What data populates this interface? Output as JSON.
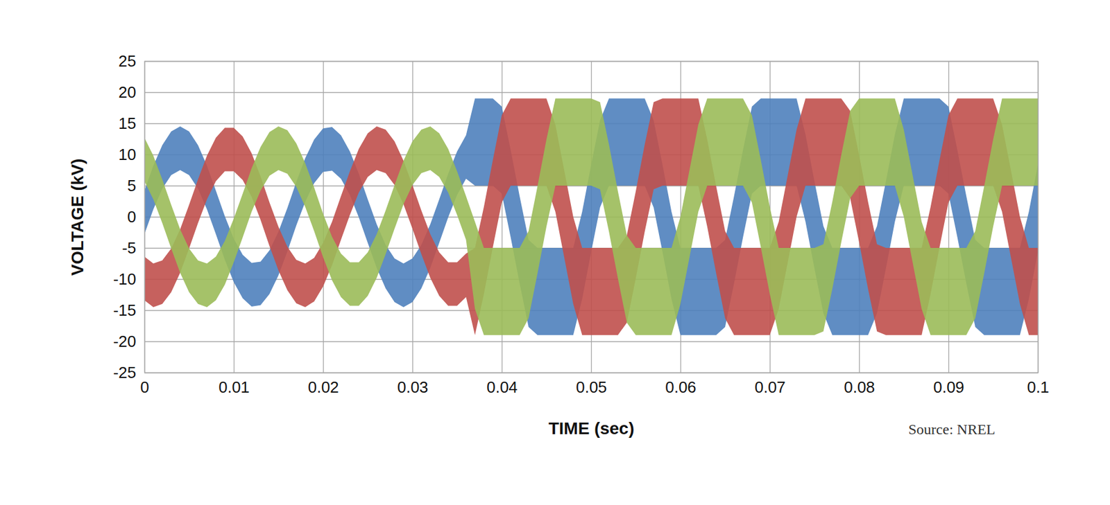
{
  "chart_data": {
    "type": "area",
    "x_label": "TIME (sec)",
    "y_label": "VOLTAGE (kV)",
    "annotation": "Source: NREL",
    "xlim": [
      0,
      0.1
    ],
    "xticks": [
      0,
      0.01,
      0.02,
      0.03,
      0.04,
      0.05,
      0.06,
      0.07,
      0.08,
      0.09,
      0.1
    ],
    "ylim": [
      -25,
      25
    ],
    "yticks": [
      -25,
      -20,
      -15,
      -10,
      -5,
      0,
      5,
      10,
      15,
      20,
      25
    ],
    "grid": true,
    "x": [
      0,
      0.001,
      0.002,
      0.003,
      0.004,
      0.005,
      0.006,
      0.007,
      0.008,
      0.009,
      0.01,
      0.011,
      0.012,
      0.013,
      0.014,
      0.015,
      0.016,
      0.017,
      0.018,
      0.019,
      0.02,
      0.021,
      0.022,
      0.023,
      0.024,
      0.025,
      0.026,
      0.027,
      0.028,
      0.029,
      0.03,
      0.031,
      0.032,
      0.033,
      0.034,
      0.035,
      0.036,
      0.037,
      0.038,
      0.039,
      0.04,
      0.041,
      0.042,
      0.043,
      0.044,
      0.045,
      0.046,
      0.047,
      0.048,
      0.049,
      0.05,
      0.051,
      0.052,
      0.053,
      0.054,
      0.055,
      0.056,
      0.057,
      0.058,
      0.059,
      0.06,
      0.061,
      0.062,
      0.063,
      0.064,
      0.065,
      0.066,
      0.067,
      0.068,
      0.069,
      0.07,
      0.071,
      0.072,
      0.073,
      0.074,
      0.075,
      0.076,
      0.077,
      0.078,
      0.079,
      0.08,
      0.081,
      0.082,
      0.083,
      0.084,
      0.085,
      0.086,
      0.087,
      0.088,
      0.089,
      0.09,
      0.091,
      0.092,
      0.093,
      0.094,
      0.095,
      0.096,
      0.097,
      0.098,
      0.099,
      0.1
    ],
    "series": [
      {
        "color": "#4f81bd",
        "upper": [
          4.2,
          8.2,
          11.5,
          13.7,
          14.5,
          13.7,
          11.5,
          8.2,
          4.2,
          0.1,
          -3.5,
          -6.1,
          -7.4,
          -7.2,
          -5.4,
          -2.4,
          1.4,
          5.6,
          9.4,
          12.4,
          14.2,
          14.4,
          13.1,
          10.5,
          6.9,
          2.8,
          -1.2,
          -4.5,
          -6.7,
          -7.5,
          -6.7,
          -4.5,
          -1.2,
          2.8,
          6.9,
          10.5,
          13.1,
          19,
          19,
          19,
          17.7,
          10.7,
          3.3,
          -3.7,
          -5,
          -5,
          -5,
          -5,
          -5,
          0.8,
          8.3,
          15.5,
          19,
          19,
          19,
          19,
          19,
          15.5,
          8.3,
          0.8,
          -5,
          -5,
          -5,
          -5,
          -5,
          -3.7,
          3.3,
          10.7,
          17.7,
          19,
          19,
          19,
          19,
          19,
          13.2,
          5.7,
          -1.5,
          -5,
          -5,
          -5,
          -5,
          -5,
          -1.5,
          5.7,
          13.2,
          19,
          19,
          19,
          19,
          19,
          17.7,
          10.7,
          3.3,
          -3.7,
          -5,
          -5,
          -5,
          -5,
          -5,
          0.8,
          8.3
        ],
        "lower": [
          -2.8,
          1.2,
          4.5,
          6.7,
          7.5,
          6.7,
          4.5,
          1.2,
          -2.8,
          -6.9,
          -10.5,
          -13.1,
          -14.4,
          -14.2,
          -12.4,
          -9.4,
          -5.6,
          -1.4,
          2.4,
          5.4,
          7.2,
          7.4,
          6.1,
          3.5,
          -0.1,
          -4.2,
          -8.2,
          -11.5,
          -13.7,
          -14.5,
          -13.7,
          -11.5,
          -8.2,
          -4.2,
          -0.1,
          3.5,
          6.1,
          5,
          5,
          5,
          3.7,
          -3.3,
          -10.7,
          -17.7,
          -19,
          -19,
          -19,
          -19,
          -19,
          -13.2,
          -5.7,
          1.5,
          5,
          5,
          5,
          5,
          5,
          1.5,
          -5.7,
          -13.2,
          -19,
          -19,
          -19,
          -19,
          -19,
          -17.7,
          -10.7,
          -3.3,
          3.7,
          5,
          5,
          5,
          5,
          5,
          -0.8,
          -8.3,
          -15.5,
          -19,
          -19,
          -19,
          -19,
          -19,
          -15.5,
          -8.3,
          -0.8,
          5,
          5,
          5,
          5,
          5,
          3.7,
          -3.3,
          -10.7,
          -17.7,
          -19,
          -19,
          -19,
          -19,
          -19,
          -13.2,
          -5.7
        ]
      },
      {
        "color": "#c0504d",
        "upper": [
          -6.4,
          -7.5,
          -7.0,
          -5.1,
          -2.0,
          1.9,
          6.0,
          9.8,
          12.7,
          14.3,
          14.3,
          12.9,
          10.2,
          6.5,
          2.3,
          -1.6,
          -4.8,
          -6.9,
          -7.5,
          -6.6,
          -4.2,
          -0.8,
          3.3,
          7.3,
          10.9,
          13.4,
          14.5,
          14.0,
          12.1,
          9.0,
          5.1,
          1.0,
          -2.8,
          -5.7,
          -7.3,
          -7.3,
          -5.9,
          -5,
          1.6,
          9.1,
          16.3,
          19,
          19,
          19,
          19,
          19,
          14.8,
          7.4,
          0,
          -5,
          -5,
          -5,
          -5,
          -5,
          -3,
          4.1,
          11.6,
          18.4,
          19,
          19,
          19,
          19,
          19,
          12.4,
          4.9,
          -2.3,
          -5,
          -5,
          -5,
          -5,
          -5,
          -0.8,
          6.6,
          14,
          19,
          19,
          19,
          19,
          19,
          17,
          9.9,
          2.4,
          -4.4,
          -5,
          -5,
          -5,
          -5,
          -5,
          1.6,
          9.1,
          16.3,
          19,
          19,
          19,
          19,
          19,
          14.8,
          7.4,
          0,
          -5,
          -5
        ],
        "lower": [
          -13.4,
          -14.5,
          -14.0,
          -12.1,
          -9.0,
          -5.1,
          -1.0,
          2.8,
          5.7,
          7.3,
          7.3,
          5.9,
          3.2,
          -0.5,
          -4.7,
          -8.6,
          -11.8,
          -13.9,
          -14.5,
          -13.6,
          -11.2,
          -7.8,
          -3.7,
          0.3,
          3.9,
          6.4,
          7.5,
          7.0,
          5.1,
          2.0,
          -1.9,
          -6.0,
          -9.8,
          -12.7,
          -14.3,
          -14.3,
          -12.9,
          -19,
          -12.4,
          -4.9,
          2.3,
          5,
          5,
          5,
          5,
          5,
          0.8,
          -6.6,
          -14,
          -19,
          -19,
          -19,
          -19,
          -19,
          -17,
          -9.9,
          -2.4,
          4.4,
          5,
          5,
          5,
          5,
          5,
          -1.6,
          -9.1,
          -16.3,
          -19,
          -19,
          -19,
          -19,
          -19,
          -14.8,
          -7.4,
          0,
          5,
          5,
          5,
          5,
          5,
          3,
          -4.1,
          -11.6,
          -18.4,
          -19,
          -19,
          -19,
          -19,
          -19,
          -12.4,
          -4.9,
          2.3,
          5,
          5,
          5,
          5,
          5,
          0.8,
          -6.6,
          -14,
          -19,
          -19
        ]
      },
      {
        "color": "#9bbb59",
        "upper": [
          12.7,
          9.8,
          6.0,
          1.9,
          -2.0,
          -5.1,
          -7.0,
          -7.5,
          -6.4,
          -3.9,
          -0.3,
          3.7,
          7.8,
          11.2,
          13.6,
          14.5,
          13.9,
          11.8,
          8.6,
          4.7,
          0.5,
          -3.2,
          -5.9,
          -7.3,
          -7.3,
          -5.7,
          -2.8,
          1.0,
          5.1,
          9.0,
          12.1,
          14.0,
          14.5,
          13.4,
          10.9,
          7.3,
          3.3,
          -0.8,
          -5,
          -5,
          -5,
          -5,
          -5,
          -2.3,
          4.9,
          12.4,
          19,
          19,
          19,
          19,
          19,
          18.4,
          11.6,
          4.1,
          -3,
          -5,
          -5,
          -5,
          -5,
          -5,
          0,
          7.4,
          14.8,
          19,
          19,
          19,
          19,
          19,
          16.3,
          9.1,
          1.6,
          -5,
          -5,
          -5,
          -5,
          -5,
          -4.4,
          2.4,
          9.9,
          17,
          19,
          19,
          19,
          19,
          19,
          14,
          6.6,
          -0.8,
          -5,
          -5,
          -5,
          -5,
          -5,
          -2.3,
          4.9,
          12.4,
          19,
          19,
          19,
          19,
          19
        ],
        "lower": [
          5.7,
          2.8,
          -1.0,
          -5.1,
          -9.0,
          -12.1,
          -14.0,
          -14.5,
          -13.4,
          -10.9,
          -7.3,
          -3.3,
          0.8,
          4.2,
          6.6,
          7.5,
          6.9,
          4.8,
          1.6,
          -2.3,
          -6.5,
          -10.2,
          -12.9,
          -14.3,
          -14.3,
          -12.7,
          -9.8,
          -6.0,
          -1.9,
          2.0,
          5.1,
          7.0,
          7.5,
          6.4,
          3.9,
          0.3,
          -3.7,
          -14.8,
          -19,
          -19,
          -19,
          -19,
          -19,
          -16.3,
          -9.1,
          -1.6,
          5,
          5,
          5,
          5,
          5,
          4.4,
          -2.4,
          -9.9,
          -17,
          -19,
          -19,
          -19,
          -19,
          -19,
          -14,
          -6.6,
          0.8,
          5,
          5,
          5,
          5,
          5,
          2.3,
          -4.9,
          -12.4,
          -19,
          -19,
          -19,
          -19,
          -19,
          -18.4,
          -11.6,
          -4.1,
          3,
          5,
          5,
          5,
          5,
          5,
          0,
          -7.4,
          -14.8,
          -19,
          -19,
          -19,
          -19,
          -19,
          -16.3,
          -9.1,
          -1.6,
          5,
          5,
          5,
          5,
          5
        ]
      }
    ]
  }
}
